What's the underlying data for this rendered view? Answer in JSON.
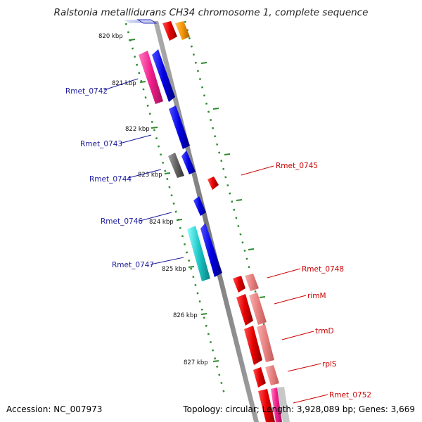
{
  "title": "Ralstonia metallidurans CH34 chromosome 1, complete sequence",
  "accession": "Accession: NC_007973",
  "topology": "Topology: circular; Length: 3,928,089 bp; Genes: 3,669",
  "kbp_labels": [
    "820 kbp",
    "821 kbp",
    "822 kbp",
    "823 kbp",
    "824 kbp",
    "825 kbp",
    "826 kbp",
    "827 kbp"
  ],
  "left_genes": [
    "Rmet_0742",
    "Rmet_0743",
    "Rmet_0744",
    "Rmet_0746",
    "Rmet_0747"
  ],
  "right_genes": [
    "Rmet_0745",
    "Rmet_0748",
    "rimM",
    "trmD",
    "rplS",
    "Rmet_0752"
  ],
  "colors": {
    "backbone": "#8c8c8c",
    "tick": "#2e8b2e",
    "left_label": "#1a1a9e",
    "right_label": "#cc0000",
    "cds_blue": "#0a0ae6",
    "cds_red": "#e60a0a",
    "cds_pink": "#f01e8c",
    "cds_cyan": "#1ec8c8",
    "cds_grey": "#646464",
    "cds_orange": "#f5960a",
    "cds_salmon": "#e87878"
  }
}
